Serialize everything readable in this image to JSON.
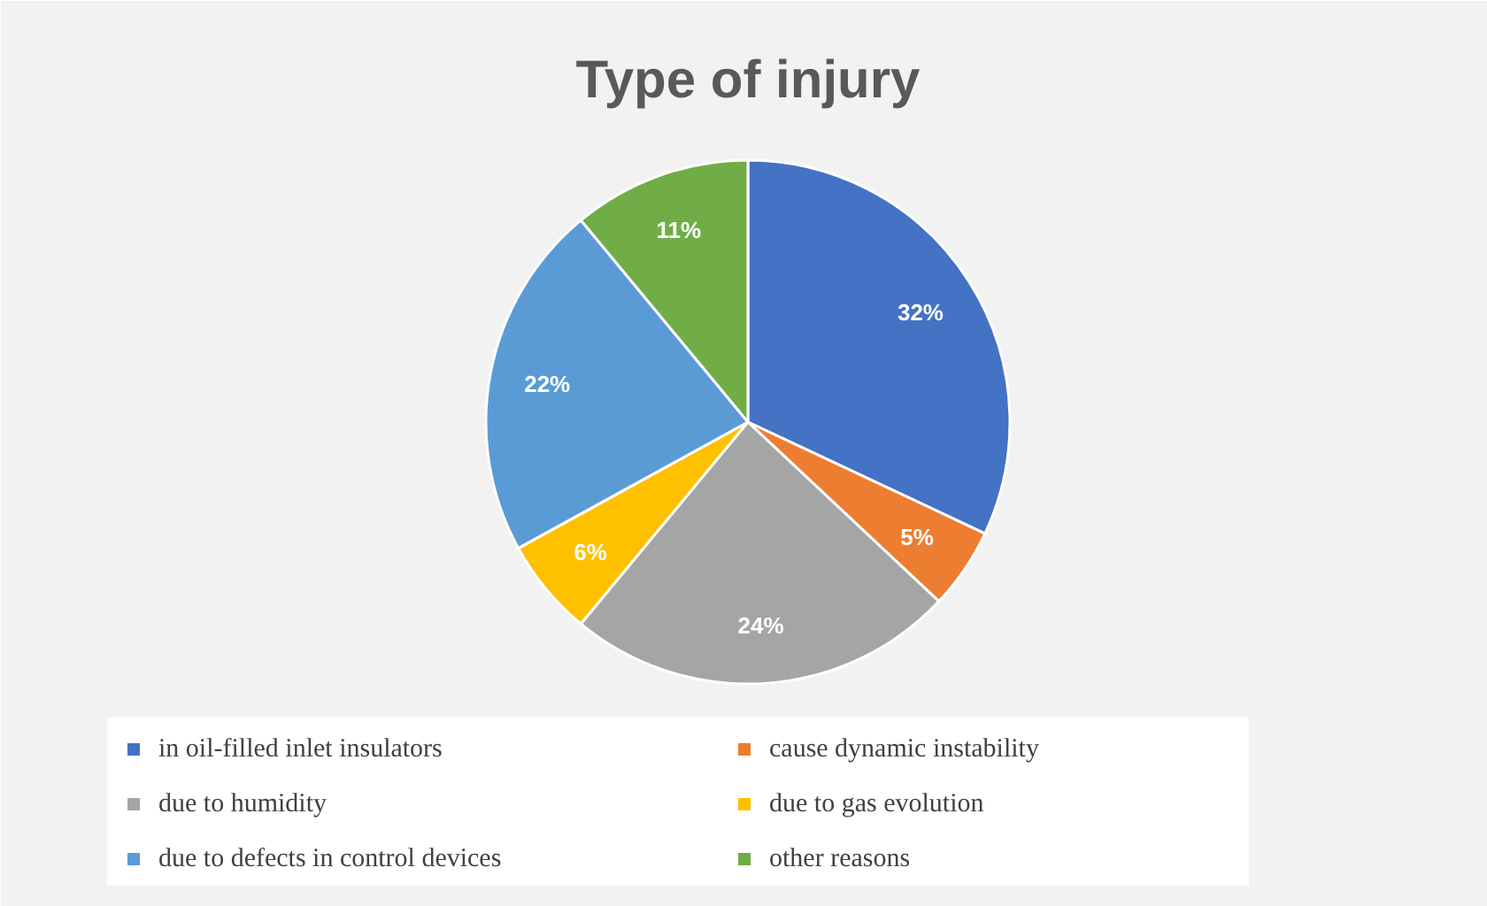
{
  "chart_data": {
    "type": "pie",
    "title": "Type of injury",
    "categories": [
      "in oil-filled inlet insulators",
      "cause dynamic instability",
      "due to humidity",
      "due to gas evolution",
      "due to defects in control devices",
      "other reasons"
    ],
    "values": [
      32,
      5,
      24,
      6,
      22,
      11
    ],
    "colors": [
      "#4472c4",
      "#ed7d31",
      "#a5a5a5",
      "#ffc000",
      "#5b9bd5",
      "#70ad47"
    ],
    "value_labels": [
      "32%",
      "5%",
      "24%",
      "6%",
      "22%",
      "11%"
    ],
    "legend": "bottom"
  }
}
